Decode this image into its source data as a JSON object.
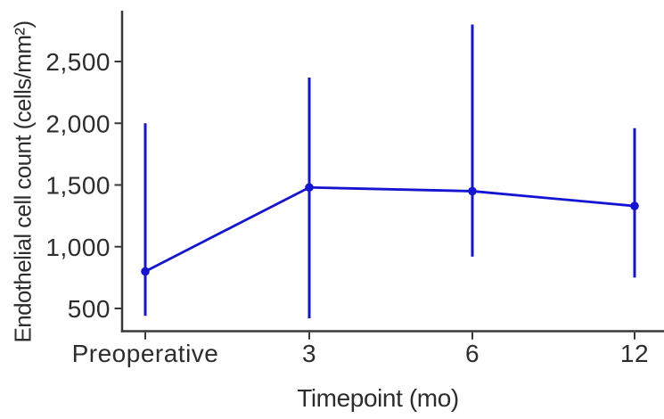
{
  "chart_data": {
    "type": "line",
    "title": "",
    "xlabel": "Timepoint (mo)",
    "ylabel": "Endothelial cell count (cells/mm²)",
    "categories": [
      "Preoperative",
      "3",
      "6",
      "12"
    ],
    "values": [
      800,
      1480,
      1450,
      1330
    ],
    "error_high": [
      2000,
      2370,
      2800,
      1960
    ],
    "error_low": [
      440,
      420,
      920,
      750
    ],
    "y_ticks": [
      500,
      1000,
      1500,
      2000,
      2500
    ],
    "y_tick_labels": [
      "500",
      "1,000",
      "1,500",
      "2,000",
      "2,500"
    ],
    "ylim": [
      320,
      2900
    ],
    "grid": false,
    "legend": false,
    "marker": "circle",
    "series_color": "#1414d2",
    "axis_color": "#383838",
    "text_color": "#2d2d2d"
  }
}
